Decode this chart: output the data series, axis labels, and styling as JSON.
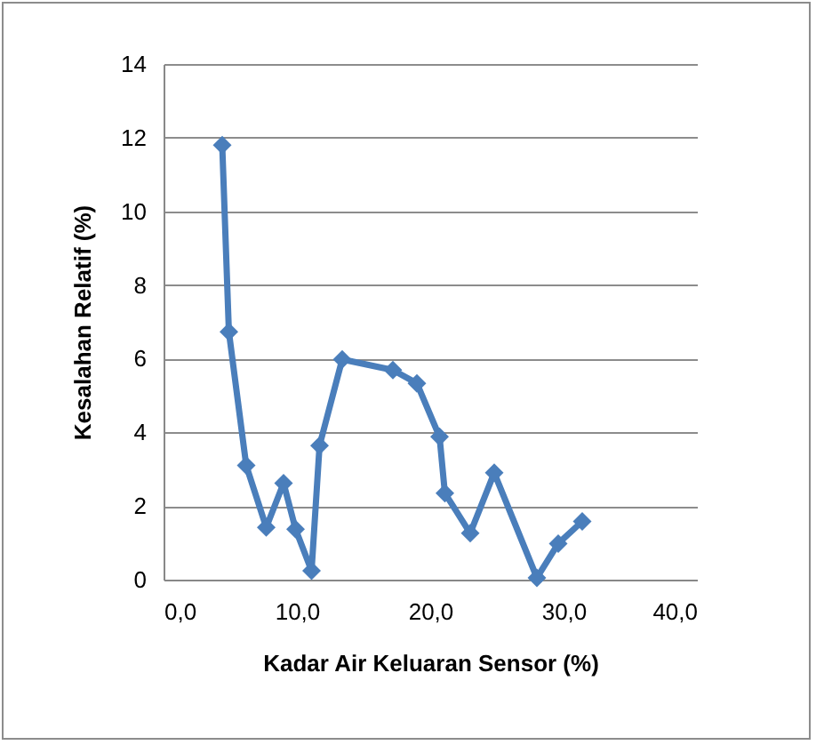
{
  "chart_data": {
    "type": "line",
    "xlabel": "Kadar Air Keluaran Sensor (%)",
    "ylabel": "Kesalahan Relatif (%)",
    "x": [
      4.4,
      4.9,
      6.2,
      7.7,
      9.0,
      9.9,
      11.1,
      11.7,
      13.4,
      17.2,
      19.0,
      20.7,
      21.1,
      23.0,
      24.8,
      28.0,
      29.6,
      31.4
    ],
    "series": [
      {
        "color": "#4a7ebb",
        "values": [
          11.8,
          6.73,
          3.1,
          1.42,
          2.62,
          1.37,
          0.24,
          3.64,
          5.98,
          5.69,
          5.33,
          3.88,
          2.35,
          1.26,
          2.9,
          0.05,
          0.98,
          1.58
        ]
      }
    ],
    "xlim": [
      0,
      40
    ],
    "xticks": [
      {
        "value": 0,
        "label": "0,0"
      },
      {
        "value": 10,
        "label": "10,0"
      },
      {
        "value": 20,
        "label": "20,0"
      },
      {
        "value": 30,
        "label": "30,0"
      },
      {
        "value": 40,
        "label": "40,0"
      }
    ],
    "ylim": [
      0,
      14
    ],
    "yticks": [
      0,
      2,
      4,
      6,
      8,
      10,
      12,
      14
    ],
    "grid": "y",
    "marker": "diamond",
    "line_style": "solid",
    "legend": false
  }
}
